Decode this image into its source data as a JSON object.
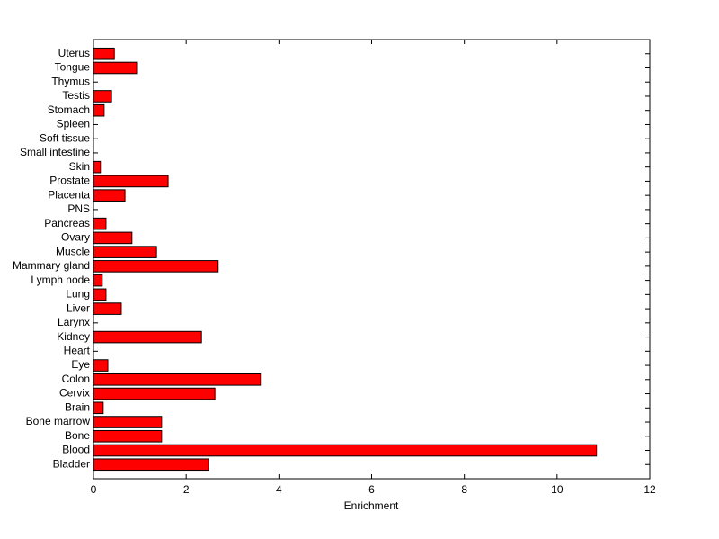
{
  "chart_data": {
    "type": "barh",
    "xlabel": "Enrichment",
    "categories": [
      "Bladder",
      "Blood",
      "Bone",
      "Bone marrow",
      "Brain",
      "Cervix",
      "Colon",
      "Eye",
      "Heart",
      "Kidney",
      "Larynx",
      "Liver",
      "Lung",
      "Lymph node",
      "Mammary gland",
      "Muscle",
      "Ovary",
      "Pancreas",
      "PNS",
      "Placenta",
      "Prostate",
      "Skin",
      "Small intestine",
      "Soft tissue",
      "Spleen",
      "Stomach",
      "Testis",
      "Thymus",
      "Tongue",
      "Uterus"
    ],
    "values": [
      2.48,
      10.85,
      1.47,
      1.47,
      0.21,
      2.62,
      3.6,
      0.31,
      0,
      2.33,
      0,
      0.6,
      0.27,
      0.19,
      2.69,
      1.36,
      0.83,
      0.27,
      0,
      0.68,
      1.61,
      0.15,
      0,
      0,
      0,
      0.23,
      0.39,
      0,
      0.93,
      0.45
    ],
    "color": "#ff0000",
    "xlim": [
      0,
      12
    ],
    "xticks": [
      0,
      2,
      4,
      6,
      8,
      10,
      12
    ]
  }
}
